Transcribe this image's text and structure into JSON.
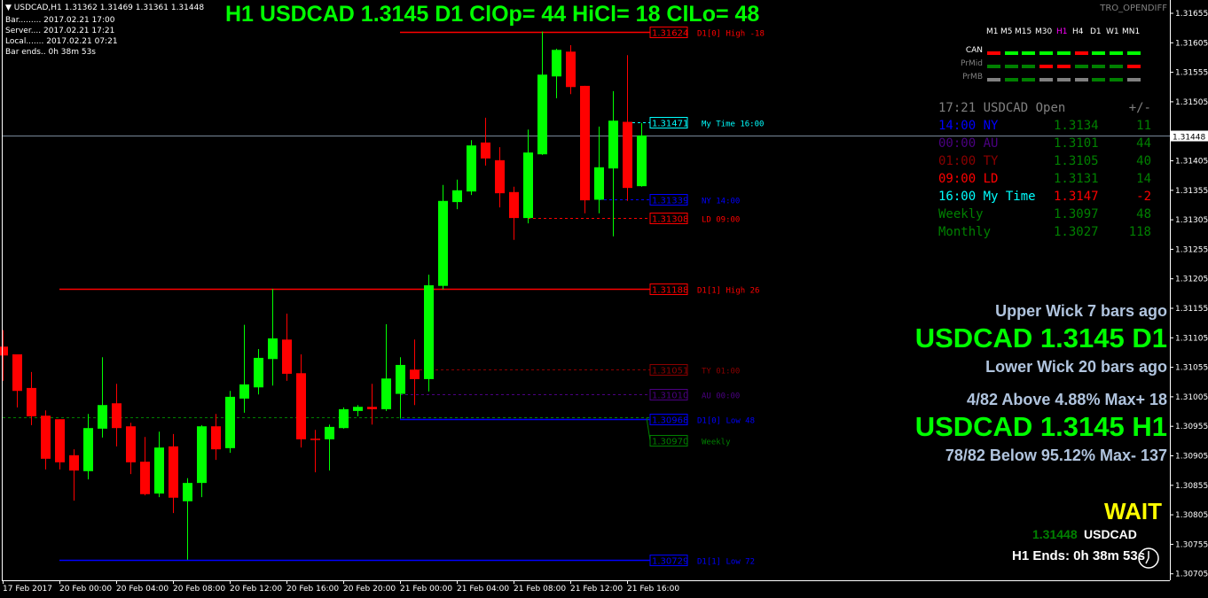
{
  "symbol_info": {
    "header": "USDCAD,H1  1.31362 1.31469 1.31361 1.31448",
    "bar": "Bar......... 2017.02.21 17:00",
    "server": "Server.... 2017.02.21 17:21",
    "local": "Local....... 2017.02.21 07:21",
    "bar_ends": "Bar ends.. 0h 38m 53s"
  },
  "title": "H1 USDCAD 1.3145  D1 ClOp= 44 HiCl= 18 ClLo= 48",
  "indicator_name": "TRO_OPENDIFF",
  "timeframes": [
    "M1",
    "M5",
    "M15",
    "M30",
    "H1",
    "H4",
    "D1",
    "W1",
    "MN1"
  ],
  "active_timeframe": "H1",
  "tf_rows": [
    {
      "label": "CAN",
      "colors": [
        "#ff0000",
        "#00ff00",
        "#00ff00",
        "#00ff00",
        "#00ff00",
        "#ff0000",
        "#00ff00",
        "#00ff00",
        "#00ff00"
      ]
    },
    {
      "label": "PrMid",
      "colors": [
        "#008000",
        "#008000",
        "#008000",
        "#ff0000",
        "#ff0000",
        "#008000",
        "#008000",
        "#008000",
        "#ff0000"
      ]
    },
    {
      "label": "PrMB",
      "colors": [
        "#808080",
        "#008000",
        "#008000",
        "#808080",
        "#808080",
        "#808080",
        "#008000",
        "#008000",
        "#808080"
      ]
    }
  ],
  "open_table": {
    "header": {
      "time": "17:21",
      "symbol": "USDCAD",
      "open": "Open",
      "diff": "+/-"
    },
    "rows": [
      {
        "label": "14:00 NY",
        "open": "1.3134",
        "diff": "11",
        "color": "#0000ff",
        "value_color": "#008000"
      },
      {
        "label": "00:00 AU",
        "open": "1.3101",
        "diff": "44",
        "color": "#4b0082",
        "value_color": "#008000"
      },
      {
        "label": "01:00 TY",
        "open": "1.3105",
        "diff": "40",
        "color": "#8b0000",
        "value_color": "#008000"
      },
      {
        "label": "09:00 LD",
        "open": "1.3131",
        "diff": "14",
        "color": "#ff0000",
        "value_color": "#008000"
      },
      {
        "label": "16:00 My Time",
        "open": "1.3147",
        "diff": "-2",
        "color": "#00ffff",
        "value_color": "#ff0000"
      },
      {
        "label": "Weekly",
        "open": "1.3097",
        "diff": "48",
        "color": "#008000",
        "value_color": "#008000"
      },
      {
        "label": "Monthly",
        "open": "1.3027",
        "diff": "118",
        "color": "#008000",
        "value_color": "#008000"
      }
    ]
  },
  "stats": {
    "upper_wick": "Upper Wick 7 bars ago",
    "d1_line": "USDCAD 1.3145 D1",
    "lower_wick": "Lower Wick 20 bars ago",
    "above": "4/82 Above 4.88% Max+ 18",
    "h1_line": "USDCAD 1.3145 H1",
    "below": "78/82 Below 95.12% Max- 137",
    "signal": "WAIT",
    "bid": "1.31448",
    "bid_symbol": "USDCAD",
    "h1_ends": "H1 Ends: 0h 38m 53s"
  },
  "colors": {
    "bull": "#00ff00",
    "bear": "#ff0000",
    "background": "#000000",
    "axis": "#ffffff",
    "price_line": "#778899"
  },
  "chart_data": {
    "type": "candlestick",
    "symbol": "USDCAD",
    "timeframe": "H1",
    "ylim": [
      1.30685,
      1.31675
    ],
    "current_price": "1.31448",
    "y_ticks": [
      "1.31655",
      "1.31605",
      "1.31555",
      "1.31505",
      "1.31405",
      "1.31355",
      "1.31305",
      "1.31255",
      "1.31205",
      "1.31155",
      "1.31105",
      "1.31055",
      "1.31005",
      "1.30955",
      "1.30905",
      "1.30855",
      "1.30805",
      "1.30755",
      "1.30705"
    ],
    "x_ticks": [
      {
        "t": "2017.02.17 20:00",
        "label": "17 Feb 2017"
      },
      {
        "t": "2017.02.20 00:00",
        "label": "20 Feb 00:00"
      },
      {
        "t": "2017.02.20 04:00",
        "label": "20 Feb 04:00"
      },
      {
        "t": "2017.02.20 08:00",
        "label": "20 Feb 08:00"
      },
      {
        "t": "2017.02.20 12:00",
        "label": "20 Feb 12:00"
      },
      {
        "t": "2017.02.20 16:00",
        "label": "20 Feb 16:00"
      },
      {
        "t": "2017.02.20 20:00",
        "label": "20 Feb 20:00"
      },
      {
        "t": "2017.02.21 00:00",
        "label": "21 Feb 00:00"
      },
      {
        "t": "2017.02.21 04:00",
        "label": "21 Feb 04:00"
      },
      {
        "t": "2017.02.21 08:00",
        "label": "21 Feb 08:00"
      },
      {
        "t": "2017.02.21 12:00",
        "label": "21 Feb 12:00"
      },
      {
        "t": "2017.02.21 16:00",
        "label": "21 Feb 16:00"
      }
    ],
    "candles_columns": [
      "time",
      "open",
      "high",
      "low",
      "close"
    ],
    "candles": [
      [
        "2017.02.17 20:00",
        1.3109,
        1.31118,
        1.31032,
        1.31075
      ],
      [
        "2017.02.17 21:00",
        1.31077,
        1.31077,
        1.30987,
        1.31015
      ],
      [
        "2017.02.17 22:00",
        1.3102,
        1.31047,
        1.30957,
        1.30972
      ],
      [
        "2017.02.17 23:00",
        1.30973,
        1.30982,
        1.30882,
        1.309
      ],
      [
        "2017.02.20 00:00",
        1.30967,
        1.30967,
        1.30882,
        1.30894
      ],
      [
        "2017.02.20 01:00",
        1.30906,
        1.30916,
        1.30829,
        1.3088
      ],
      [
        "2017.02.20 02:00",
        1.30879,
        1.30976,
        1.30865,
        1.30952
      ],
      [
        "2017.02.20 03:00",
        1.30951,
        1.31072,
        1.30936,
        1.30991
      ],
      [
        "2017.02.20 04:00",
        1.30994,
        1.31027,
        1.30921,
        1.30952
      ],
      [
        "2017.02.20 05:00",
        1.30955,
        1.30961,
        1.30874,
        1.30894
      ],
      [
        "2017.02.20 06:00",
        1.30895,
        1.30937,
        1.30838,
        1.3084
      ],
      [
        "2017.02.20 07:00",
        1.30841,
        1.30946,
        1.30835,
        1.30919
      ],
      [
        "2017.02.20 08:00",
        1.30921,
        1.30942,
        1.30808,
        1.30834
      ],
      [
        "2017.02.20 09:00",
        1.30828,
        1.30867,
        1.30729,
        1.30859
      ],
      [
        "2017.02.20 10:00",
        1.30859,
        1.30957,
        1.30835,
        1.30955
      ],
      [
        "2017.02.20 11:00",
        1.30955,
        1.30976,
        1.30898,
        1.30916
      ],
      [
        "2017.02.20 12:00",
        1.30918,
        1.31015,
        1.3091,
        1.31005
      ],
      [
        "2017.02.20 13:00",
        1.31002,
        1.31127,
        1.30978,
        1.31026
      ],
      [
        "2017.02.20 14:00",
        1.31021,
        1.31086,
        1.31009,
        1.31071
      ],
      [
        "2017.02.20 15:00",
        1.31069,
        1.31188,
        1.31024,
        1.31104
      ],
      [
        "2017.02.20 16:00",
        1.31102,
        1.31146,
        1.31032,
        1.31044
      ],
      [
        "2017.02.20 17:00",
        1.31045,
        1.31077,
        1.30919,
        1.30933
      ],
      [
        "2017.02.20 18:00",
        1.30934,
        1.30949,
        1.30877,
        1.30933
      ],
      [
        "2017.02.20 19:00",
        1.30933,
        1.30958,
        1.3088,
        1.30954
      ],
      [
        "2017.02.20 20:00",
        1.30952,
        1.30987,
        1.30951,
        1.30984
      ],
      [
        "2017.02.20 21:00",
        1.30981,
        1.30991,
        1.30972,
        1.30988
      ],
      [
        "2017.02.20 22:00",
        1.30988,
        1.31027,
        1.30958,
        1.30984
      ],
      [
        "2017.02.20 23:00",
        1.30984,
        1.31128,
        1.30981,
        1.31036
      ],
      [
        "2017.02.21 00:00",
        1.3101,
        1.31072,
        1.30968,
        1.31059
      ],
      [
        "2017.02.21 01:00",
        1.31051,
        1.31102,
        1.30991,
        1.31035
      ],
      [
        "2017.02.21 02:00",
        1.31035,
        1.31212,
        1.31014,
        1.31194
      ],
      [
        "2017.02.21 03:00",
        1.31193,
        1.31364,
        1.31187,
        1.31337
      ],
      [
        "2017.02.21 04:00",
        1.31335,
        1.31373,
        1.31323,
        1.31355
      ],
      [
        "2017.02.21 05:00",
        1.31353,
        1.3144,
        1.31347,
        1.31431
      ],
      [
        "2017.02.21 06:00",
        1.31436,
        1.31478,
        1.31397,
        1.31409
      ],
      [
        "2017.02.21 07:00",
        1.31406,
        1.31428,
        1.31326,
        1.3135
      ],
      [
        "2017.02.21 08:00",
        1.31352,
        1.31361,
        1.31271,
        1.31308
      ],
      [
        "2017.02.21 09:00",
        1.31308,
        1.31458,
        1.31299,
        1.31419
      ],
      [
        "2017.02.21 10:00",
        1.31416,
        1.31624,
        1.31415,
        1.31551
      ],
      [
        "2017.02.21 11:00",
        1.31548,
        1.31595,
        1.31511,
        1.31593
      ],
      [
        "2017.02.21 12:00",
        1.3159,
        1.31601,
        1.31518,
        1.3153
      ],
      [
        "2017.02.21 13:00",
        1.31532,
        1.31532,
        1.31316,
        1.31338
      ],
      [
        "2017.02.21 14:00",
        1.31339,
        1.31463,
        1.31316,
        1.31394
      ],
      [
        "2017.02.21 15:00",
        1.31392,
        1.31523,
        1.31277,
        1.31473
      ],
      [
        "2017.02.21 16:00",
        1.31471,
        1.31584,
        1.31337,
        1.31359
      ],
      [
        "2017.02.21 17:00",
        1.31362,
        1.31469,
        1.31361,
        1.31448
      ]
    ],
    "levels": [
      {
        "price": "1.31624",
        "label": "D1[0] High  -18",
        "color": "#ff0000",
        "style": "solid",
        "from": "2017.02.21 00:00"
      },
      {
        "price": "1.31471",
        "label": "My Time 16:00",
        "color": "#00ffff",
        "style": "dashed",
        "from": "2017.02.21 16:00"
      },
      {
        "price": "1.31339",
        "label": "NY 14:00",
        "color": "#0000ff",
        "style": "dashed",
        "from": "2017.02.21 14:00"
      },
      {
        "price": "1.31308",
        "label": "LD 09:00",
        "color": "#ff0000",
        "style": "dashed",
        "from": "2017.02.21 09:00"
      },
      {
        "price": "1.31188",
        "label": "D1[1] High  26",
        "color": "#ff0000",
        "style": "solid",
        "from": "2017.02.20 00:00"
      },
      {
        "price": "1.31051",
        "label": "TY 01:00",
        "color": "#8b0000",
        "style": "dashed",
        "from": "2017.02.21 01:00"
      },
      {
        "price": "1.31010",
        "label": "AU 00:00",
        "color": "#4b0082",
        "style": "dashed",
        "from": "2017.02.21 00:00"
      },
      {
        "price": "1.30968",
        "label": "D1[0] Low  48",
        "color": "#0000ff",
        "style": "solid",
        "from": "2017.02.21 00:00"
      },
      {
        "price": "1.30970",
        "label": "Weekly",
        "color": "#008000",
        "style": "dashed",
        "from": "2017.02.17 20:00"
      },
      {
        "price": "1.30729",
        "label": "D1[1] Low  72",
        "color": "#0000ff",
        "style": "solid",
        "from": "2017.02.20 00:00"
      }
    ]
  }
}
